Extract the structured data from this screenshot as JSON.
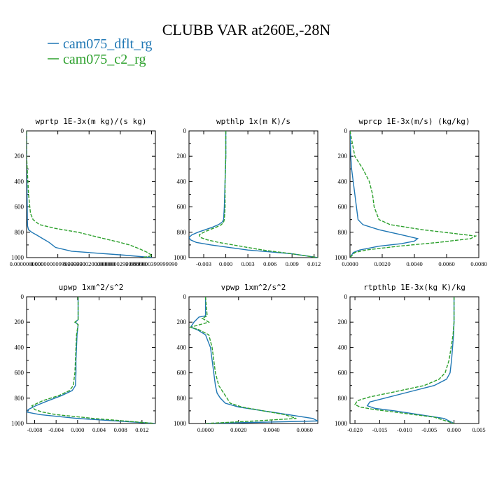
{
  "title": "CLUBB VAR at260E,-28N",
  "legend": [
    {
      "label": "cam075_dflt_rg",
      "color": "#1f77b4"
    },
    {
      "label": "cam075_c2_rg",
      "color": "#2ca02c"
    }
  ],
  "chart_data": [
    {
      "type": "line",
      "title": "wprtp  1E-3x(m kg)/(s kg)",
      "xlim": [
        0.0,
        2e-07
      ],
      "ylim": [
        1000,
        0
      ],
      "xticks": [
        "0.0000000000",
        "0.00000000999999990",
        "0.0000000200000000",
        "0.0000000299999990",
        "0.0000000399999990"
      ],
      "yticks": [
        "0",
        "200",
        "400",
        "600",
        "800",
        "1000"
      ],
      "series": [
        {
          "name": "cam075_dflt_rg",
          "y": [
            0,
            200,
            400,
            600,
            700,
            750,
            780,
            800,
            820,
            850,
            880,
            920,
            950,
            980,
            1000
          ],
          "x": [
            0,
            0,
            5e-10,
            1e-09,
            1.2e-09,
            1.5e-09,
            3e-09,
            8e-09,
            1.5e-08,
            2.5e-08,
            3.5e-08,
            4.5e-08,
            7e-08,
            1.5e-07,
            1.95e-07
          ]
        },
        {
          "name": "cam075_c2_rg",
          "y": [
            0,
            200,
            300,
            500,
            650,
            700,
            740,
            770,
            800,
            850,
            880,
            900,
            930,
            960,
            985,
            1000
          ],
          "x": [
            0,
            0,
            1e-09,
            3e-09,
            6e-09,
            1e-08,
            2e-08,
            4.5e-08,
            8e-08,
            1.2e-07,
            1.45e-07,
            1.6e-07,
            1.75e-07,
            1.88e-07,
            1.95e-07,
            1.8e-07
          ]
        }
      ]
    },
    {
      "type": "line",
      "title": "wpthlp  1x(m K)/s",
      "xlim": [
        -0.005,
        0.0125
      ],
      "ylim": [
        1000,
        0
      ],
      "xticks": [
        "-0.003",
        "0.000",
        "0.003",
        "0.006",
        "0.009",
        "0.012"
      ],
      "yticks": [
        "0",
        "200",
        "400",
        "600",
        "800",
        "1000"
      ],
      "series": [
        {
          "name": "cam075_dflt_rg",
          "y": [
            0,
            200,
            400,
            600,
            700,
            720,
            740,
            760,
            780,
            800,
            820,
            840,
            860,
            880,
            900,
            940,
            970,
            1000
          ],
          "x": [
            0.0,
            0.0,
            -0.0001,
            -0.0002,
            -0.0003,
            -0.0005,
            -0.001,
            -0.0018,
            -0.0028,
            -0.0038,
            -0.0046,
            -0.005,
            -0.0048,
            -0.004,
            -0.002,
            0.003,
            0.009,
            0.0125
          ]
        },
        {
          "name": "cam075_c2_rg",
          "y": [
            0,
            200,
            400,
            600,
            700,
            720,
            740,
            760,
            780,
            800,
            820,
            840,
            860,
            880,
            900,
            940,
            970,
            1000
          ],
          "x": [
            0.0,
            0.0,
            -0.0001,
            -0.0001,
            -0.0002,
            -0.0003,
            -0.0006,
            -0.0013,
            -0.0022,
            -0.003,
            -0.0036,
            -0.0035,
            -0.0025,
            -0.001,
            0.001,
            0.005,
            0.009,
            0.0125
          ]
        }
      ]
    },
    {
      "type": "line",
      "title": "wprcp  1E-3x(m/s) (kg/kg)",
      "xlim": [
        0.0,
        0.008
      ],
      "ylim": [
        1000,
        0
      ],
      "xticks": [
        "0.0000",
        "0.0020",
        "0.0040",
        "0.0060",
        "0.0080"
      ],
      "yticks": [
        "0",
        "200",
        "400",
        "600",
        "800",
        "1000"
      ],
      "series": [
        {
          "name": "cam075_dflt_rg",
          "y": [
            0,
            200,
            300,
            400,
            500,
            600,
            700,
            740,
            780,
            820,
            850,
            870,
            890,
            910,
            940,
            960,
            1000
          ],
          "x": [
            0.0,
            5e-05,
            0.0001,
            0.0002,
            0.0003,
            0.0004,
            0.0005,
            0.0008,
            0.0018,
            0.0032,
            0.0042,
            0.004,
            0.0032,
            0.0018,
            0.0006,
            0.0002,
            0.0
          ]
        },
        {
          "name": "cam075_c2_rg",
          "y": [
            0,
            200,
            300,
            400,
            500,
            600,
            700,
            740,
            780,
            810,
            830,
            850,
            880,
            910,
            940,
            960,
            1000
          ],
          "x": [
            0.0,
            0.0003,
            0.0008,
            0.0012,
            0.0014,
            0.0015,
            0.0018,
            0.0025,
            0.0045,
            0.0065,
            0.0078,
            0.0075,
            0.0055,
            0.003,
            0.001,
            0.0003,
            0.0
          ]
        }
      ]
    },
    {
      "type": "line",
      "title": "upwp  1xm^2/s^2",
      "xlim": [
        -0.0095,
        0.0145
      ],
      "ylim": [
        1000,
        0
      ],
      "xticks": [
        "-0.008",
        "-0.004",
        "0.000",
        "0.004",
        "0.008",
        "0.012"
      ],
      "yticks": [
        "0",
        "200",
        "400",
        "600",
        "800",
        "1000"
      ],
      "series": [
        {
          "name": "cam075_dflt_rg",
          "y": [
            0,
            180,
            200,
            220,
            300,
            400,
            500,
            600,
            700,
            740,
            780,
            820,
            860,
            890,
            910,
            930,
            960,
            1000
          ],
          "x": [
            0.0001,
            0.0001,
            -0.0004,
            0.0001,
            -0.0001,
            -0.0002,
            -0.0003,
            -0.0003,
            -0.0004,
            -0.001,
            -0.003,
            -0.0055,
            -0.0078,
            -0.0092,
            -0.0095,
            -0.007,
            0.0,
            0.0145
          ]
        },
        {
          "name": "cam075_c2_rg",
          "y": [
            0,
            180,
            200,
            220,
            300,
            400,
            500,
            600,
            700,
            740,
            780,
            820,
            860,
            890,
            910,
            930,
            960,
            1000
          ],
          "x": [
            0.0001,
            0.0001,
            -0.0005,
            0.0001,
            -0.0002,
            -0.0003,
            -0.0004,
            -0.0005,
            -0.0008,
            -0.0015,
            -0.0035,
            -0.0065,
            -0.0085,
            -0.008,
            -0.0065,
            -0.004,
            0.003,
            0.0145
          ]
        }
      ]
    },
    {
      "type": "line",
      "title": "vpwp  1xm^2/s^2",
      "xlim": [
        -0.001,
        0.0068
      ],
      "ylim": [
        1000,
        0
      ],
      "xticks": [
        "0.0000",
        "0.0020",
        "0.0040",
        "0.0060"
      ],
      "yticks": [
        "0",
        "200",
        "400",
        "600",
        "800",
        "1000"
      ],
      "series": [
        {
          "name": "cam075_dflt_rg",
          "y": [
            0,
            150,
            160,
            200,
            240,
            260,
            300,
            400,
            500,
            600,
            700,
            760,
            800,
            840,
            870,
            900,
            930,
            960,
            980,
            1000
          ],
          "x": [
            0.0,
            0.0,
            -0.0004,
            -0.0007,
            -0.0009,
            -0.0005,
            0.0,
            0.0003,
            0.0004,
            0.0005,
            0.0006,
            0.0007,
            0.0009,
            0.0012,
            0.002,
            0.0035,
            0.005,
            0.0065,
            0.0068,
            0.0
          ]
        },
        {
          "name": "cam075_c2_rg",
          "y": [
            0,
            150,
            170,
            200,
            240,
            260,
            300,
            400,
            500,
            600,
            700,
            760,
            800,
            840,
            870,
            900,
            930,
            960,
            980,
            1000
          ],
          "x": [
            0.0,
            0.0001,
            -0.0002,
            0.0002,
            -0.0009,
            -0.0004,
            0.0002,
            0.0004,
            0.0005,
            0.0006,
            0.0008,
            0.0011,
            0.0013,
            0.0015,
            0.0022,
            0.0035,
            0.0048,
            0.0055,
            0.003,
            0.0
          ]
        }
      ]
    },
    {
      "type": "line",
      "title": "rtpthlp  1E-3x(kg K)/kg",
      "xlim": [
        -0.021,
        0.005
      ],
      "ylim": [
        1000,
        0
      ],
      "xticks": [
        "-0.020",
        "-0.015",
        "-0.010",
        "-0.005",
        "0.000",
        "0.005"
      ],
      "yticks": [
        "0",
        "200",
        "400",
        "600",
        "800",
        "1000"
      ],
      "series": [
        {
          "name": "cam075_dflt_rg",
          "y": [
            0,
            200,
            300,
            400,
            500,
            600,
            650,
            700,
            750,
            800,
            830,
            860,
            880,
            900,
            930,
            960,
            1000
          ],
          "x": [
            0.0,
            0.0,
            -0.0001,
            -0.0003,
            -0.0005,
            -0.0008,
            -0.0015,
            -0.004,
            -0.009,
            -0.014,
            -0.017,
            -0.0175,
            -0.016,
            -0.012,
            -0.007,
            -0.002,
            0.0
          ]
        },
        {
          "name": "cam075_c2_rg",
          "y": [
            0,
            200,
            300,
            400,
            500,
            600,
            650,
            700,
            750,
            790,
            820,
            850,
            870,
            890,
            920,
            950,
            1000
          ],
          "x": [
            0.0,
            0.0,
            -0.0002,
            -0.0006,
            -0.001,
            -0.0018,
            -0.003,
            -0.006,
            -0.012,
            -0.017,
            -0.0195,
            -0.02,
            -0.019,
            -0.016,
            -0.01,
            -0.004,
            0.0
          ]
        }
      ]
    }
  ]
}
